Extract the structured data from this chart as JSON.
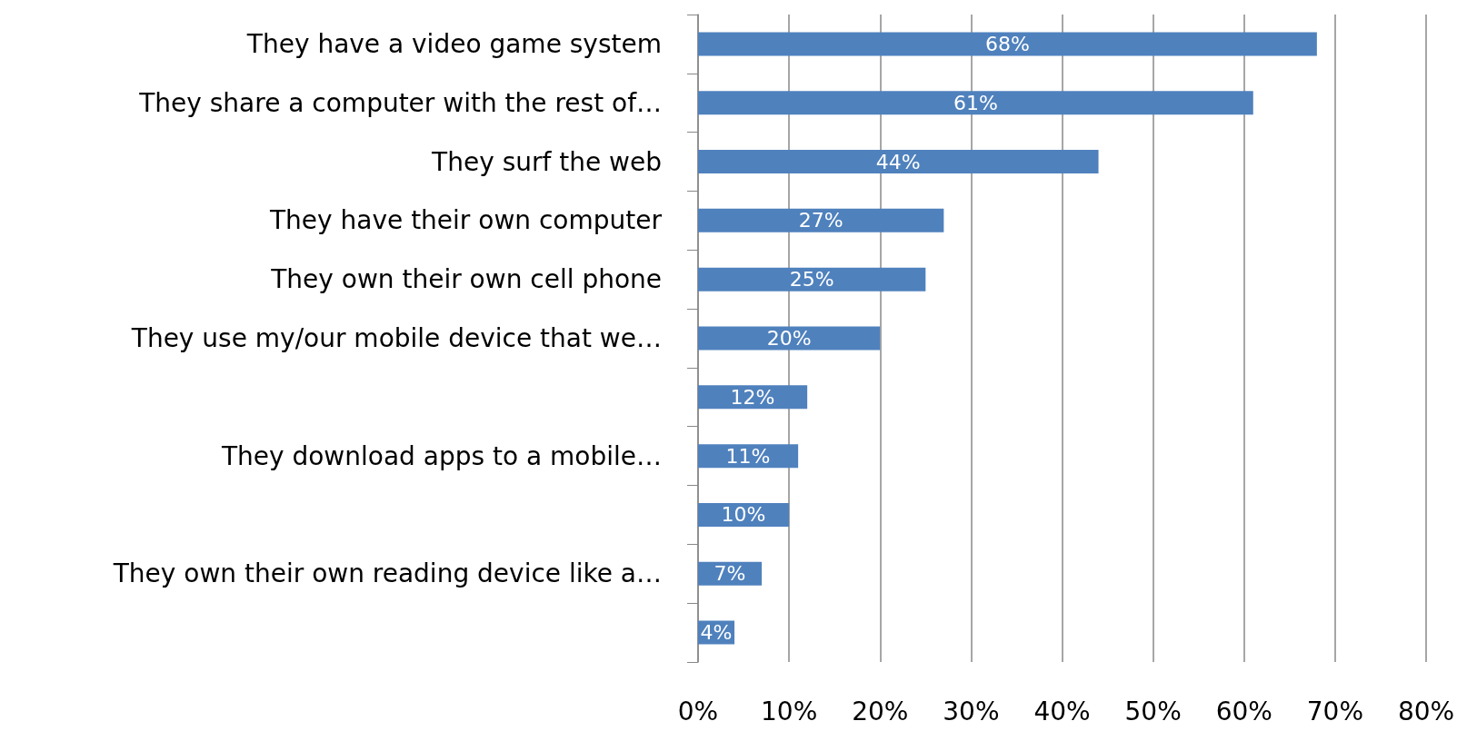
{
  "chart_data": {
    "type": "bar",
    "orientation": "horizontal",
    "categories": [
      "They have a video game system",
      "They share a computer with the rest of…",
      "They surf the web",
      "They have their own computer",
      "They own their own cell phone",
      "They use my/our mobile device that we…",
      null,
      "They download apps to a mobile…",
      null,
      "They own their own reading device like a…",
      null
    ],
    "values": [
      68,
      61,
      44,
      27,
      25,
      20,
      12,
      11,
      10,
      7,
      4
    ],
    "value_labels": [
      "68%",
      "61%",
      "44%",
      "27%",
      "25%",
      "20%",
      "12%",
      "11%",
      "10%",
      "7%",
      "4%"
    ],
    "color": "#4f81bd",
    "xlim": [
      0,
      80
    ],
    "xticks": [
      {
        "value": 0,
        "label": "0%"
      },
      {
        "value": 10,
        "label": "10%"
      },
      {
        "value": 20,
        "label": "20%"
      },
      {
        "value": 30,
        "label": "30%"
      },
      {
        "value": 40,
        "label": "40%"
      },
      {
        "value": 50,
        "label": "50%"
      },
      {
        "value": 60,
        "label": "60%"
      },
      {
        "value": 70,
        "label": "70%"
      },
      {
        "value": 80,
        "label": "80%"
      }
    ],
    "grid": "x"
  }
}
